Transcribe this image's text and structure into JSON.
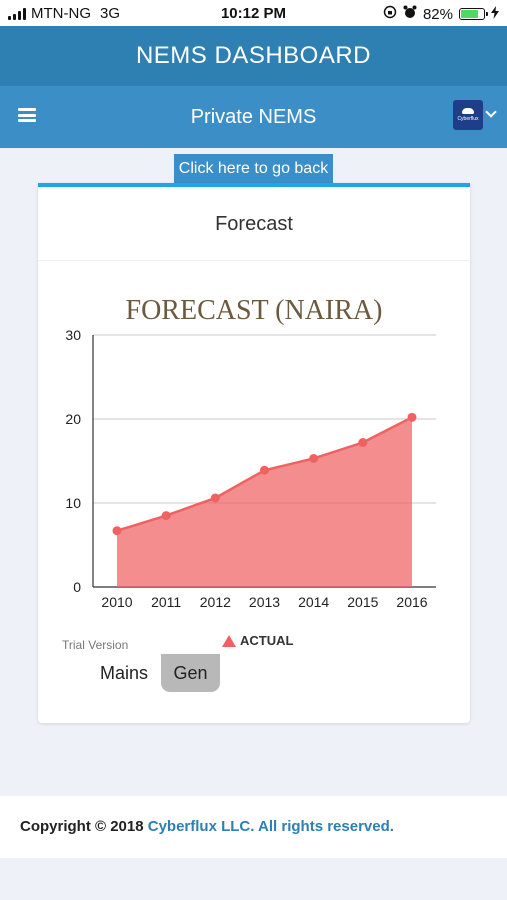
{
  "status_bar": {
    "carrier": "MTN-NG",
    "network": "3G",
    "time": "10:12 PM",
    "battery_percent": "82%",
    "battery_level": 0.82
  },
  "header": {
    "title": "NEMS DASHBOARD"
  },
  "nav": {
    "title": "Private NEMS",
    "logo_text": "Cyberflux"
  },
  "back_button": {
    "label": "Click here to go back"
  },
  "card": {
    "title": "Forecast"
  },
  "chart_data": {
    "type": "area",
    "title": "FORECAST (NAIRA)",
    "categories": [
      "2010",
      "2011",
      "2012",
      "2013",
      "2014",
      "2015",
      "2016"
    ],
    "series": [
      {
        "name": "ACTUAL",
        "values": [
          6.7,
          8.5,
          10.6,
          13.9,
          15.3,
          17.2,
          20.2
        ]
      }
    ],
    "ylim": [
      0,
      30
    ],
    "yticks": [
      "0",
      "10",
      "20",
      "30"
    ],
    "grid": true,
    "legend": "bottom",
    "color": "#f06262"
  },
  "trial_text": "Trial Version",
  "tabs": {
    "mains": "Mains",
    "gen": "Gen"
  },
  "footer": {
    "prefix": "Copyright © 2018 ",
    "link": "Cyberflux LLC. All rights reserved."
  },
  "colors": {
    "header": "#2e7fb2",
    "nav": "#3b8fc6",
    "accent": "#1ea7e8",
    "series": "#f06262"
  }
}
